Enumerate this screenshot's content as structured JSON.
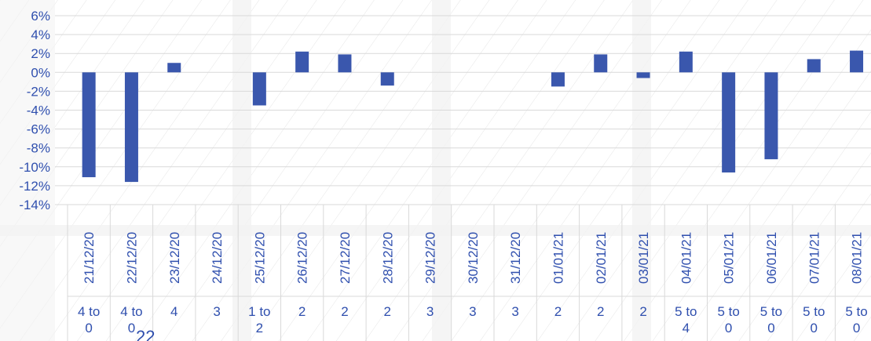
{
  "chart_data": {
    "type": "bar",
    "title": "",
    "xlabel": "",
    "ylabel": "",
    "ylim": [
      -14,
      6
    ],
    "y_ticks": [
      "6%",
      "4%",
      "2%",
      "0%",
      "-2%",
      "-4%",
      "-6%",
      "-8%",
      "-10%",
      "-12%",
      "-14%"
    ],
    "y_tick_values": [
      6,
      4,
      2,
      0,
      -2,
      -4,
      -6,
      -8,
      -10,
      -12,
      -14
    ],
    "grid": "horizontal",
    "bar_color": "#3a57ad",
    "label_color": "#2f4fae",
    "categories": [
      "21/12/20",
      "22/12/20",
      "23/12/20",
      "24/12/20",
      "25/12/20",
      "26/12/20",
      "27/12/20",
      "28/12/20",
      "29/12/20",
      "30/12/20",
      "31/12/20",
      "01/01/21",
      "02/01/21",
      "03/01/21",
      "04/01/21",
      "05/01/21",
      "06/01/21",
      "07/01/21",
      "08/01/21"
    ],
    "sublabels": [
      [
        "4 to",
        "0"
      ],
      [
        "4 to",
        "0"
      ],
      [
        "4"
      ],
      [
        "3"
      ],
      [
        "1 to",
        "2"
      ],
      [
        "2"
      ],
      [
        "2"
      ],
      [
        "2"
      ],
      [
        "3"
      ],
      [
        "3"
      ],
      [
        "3"
      ],
      [
        "2"
      ],
      [
        "2"
      ],
      [
        "2"
      ],
      [
        "5 to",
        "4"
      ],
      [
        "5 to",
        "0"
      ],
      [
        "5 to",
        "0"
      ],
      [
        "5 to",
        "0"
      ],
      [
        "5 to",
        "0"
      ]
    ],
    "values": [
      -11.1,
      -11.6,
      1.0,
      null,
      -3.5,
      2.2,
      1.9,
      -1.4,
      null,
      null,
      null,
      -1.5,
      1.9,
      -0.6,
      2.2,
      -10.6,
      -9.2,
      1.4,
      2.3
    ],
    "stray_text": "22"
  }
}
